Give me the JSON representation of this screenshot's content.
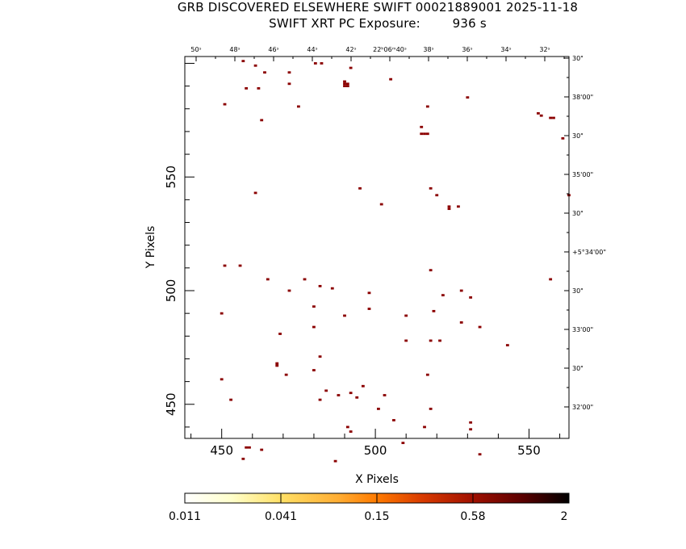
{
  "header": {
    "title_line1": "GRB DISCOVERED ELSEWHERE SWIFT 00021889001 2025-11-18",
    "title_line2": "SWIFT XRT PC Exposure:        936 s"
  },
  "chart_data": {
    "type": "scatter",
    "title": "GRB DISCOVERED ELSEWHERE SWIFT 00021889001 2025-11-18",
    "subtitle": "SWIFT XRT PC Exposure:        936 s",
    "xlabel": "X Pixels",
    "ylabel": "Y Pixels",
    "xlim": [
      438,
      563
    ],
    "ylim": [
      435,
      603
    ],
    "x_ticks": [
      450,
      500,
      550
    ],
    "y_ticks": [
      450,
      500,
      550
    ],
    "ra_ticks": [
      "50ˢ",
      "48ˢ",
      "46ˢ",
      "44ˢ",
      "42ˢ",
      "22ʰ06ᵐ40ˢ",
      "38ˢ",
      "36ˢ",
      "34ˢ",
      "32ˢ"
    ],
    "dec_ticks": [
      "30\"",
      "38'00\"",
      "30\"",
      "35'00\"",
      "30\"",
      "+5°34'00\"",
      "30\"",
      "33'00\"",
      "30\"",
      "32'00\""
    ],
    "grid": false,
    "pixel_color": "#8b0000",
    "points": [
      [
        457,
        601
      ],
      [
        461,
        599
      ],
      [
        480.5,
        600
      ],
      [
        482.5,
        600
      ],
      [
        492,
        598
      ],
      [
        464,
        596
      ],
      [
        472,
        596
      ],
      [
        505,
        593
      ],
      [
        490,
        592
      ],
      [
        472,
        591
      ],
      [
        490,
        591
      ],
      [
        491,
        591
      ],
      [
        490,
        590
      ],
      [
        491,
        590
      ],
      [
        458,
        589
      ],
      [
        462,
        589
      ],
      [
        530,
        585
      ],
      [
        451,
        582
      ],
      [
        475,
        581
      ],
      [
        517,
        581
      ],
      [
        553,
        578
      ],
      [
        554,
        577
      ],
      [
        557,
        576
      ],
      [
        558,
        576
      ],
      [
        463,
        575
      ],
      [
        515,
        572
      ],
      [
        515,
        569
      ],
      [
        516,
        569
      ],
      [
        517,
        569
      ],
      [
        561,
        567
      ],
      [
        495,
        545
      ],
      [
        518,
        545
      ],
      [
        461,
        543
      ],
      [
        520,
        542
      ],
      [
        563,
        542
      ],
      [
        502,
        538
      ],
      [
        524,
        537
      ],
      [
        527,
        537
      ],
      [
        524,
        536
      ],
      [
        451,
        511
      ],
      [
        456,
        511
      ],
      [
        518,
        509
      ],
      [
        465,
        505
      ],
      [
        477,
        505
      ],
      [
        557,
        505
      ],
      [
        482,
        502
      ],
      [
        486,
        501
      ],
      [
        472,
        500
      ],
      [
        528,
        500
      ],
      [
        498,
        499
      ],
      [
        522,
        498
      ],
      [
        531,
        497
      ],
      [
        480,
        493
      ],
      [
        498,
        492
      ],
      [
        519,
        491
      ],
      [
        450,
        490
      ],
      [
        490,
        489
      ],
      [
        510,
        489
      ],
      [
        528,
        486
      ],
      [
        480,
        484
      ],
      [
        534,
        484
      ],
      [
        469,
        481
      ],
      [
        510,
        478
      ],
      [
        518,
        478
      ],
      [
        521,
        478
      ],
      [
        543,
        476
      ],
      [
        482,
        471
      ],
      [
        468,
        468
      ],
      [
        468,
        467
      ],
      [
        480,
        465
      ],
      [
        471,
        463
      ],
      [
        517,
        463
      ],
      [
        450,
        461
      ],
      [
        496,
        458
      ],
      [
        484,
        456
      ],
      [
        492,
        455
      ],
      [
        488,
        454
      ],
      [
        494,
        453
      ],
      [
        503,
        454
      ],
      [
        482,
        452
      ],
      [
        453,
        452
      ],
      [
        501,
        448
      ],
      [
        518,
        448
      ],
      [
        506,
        443
      ],
      [
        531,
        442
      ],
      [
        516,
        440
      ],
      [
        531,
        439
      ],
      [
        491,
        440
      ],
      [
        492,
        438
      ],
      [
        509,
        433
      ],
      [
        458,
        431
      ],
      [
        459,
        431
      ],
      [
        463,
        430
      ],
      [
        534,
        428
      ],
      [
        457,
        426
      ],
      [
        487,
        425
      ]
    ]
  },
  "colorbar": {
    "tick_labels": [
      "0.011",
      "0.041",
      "0.15",
      "0.58",
      "2"
    ]
  }
}
